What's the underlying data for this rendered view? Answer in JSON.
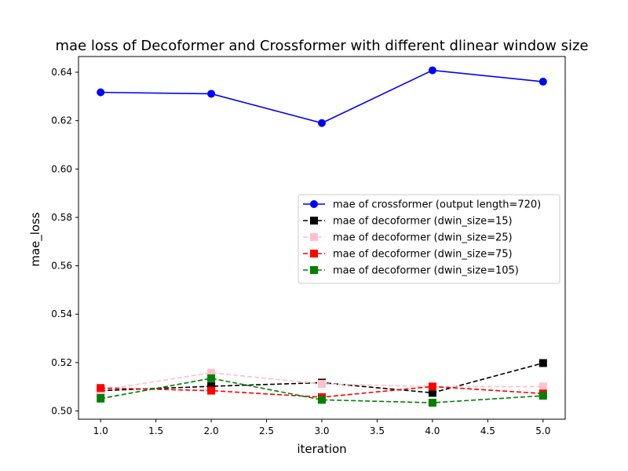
{
  "chart_data": {
    "type": "line",
    "title": "mae loss of Decoformer and Crossformer with different dlinear window size",
    "xlabel": "iteration",
    "ylabel": "mae_loss",
    "xlim": [
      0.8,
      5.2
    ],
    "ylim": [
      0.4966,
      0.6465
    ],
    "xticks": [
      1.0,
      1.5,
      2.0,
      2.5,
      3.0,
      3.5,
      4.0,
      4.5,
      5.0
    ],
    "xtick_labels": [
      "1.0",
      "1.5",
      "2.0",
      "2.5",
      "3.0",
      "3.5",
      "4.0",
      "4.5",
      "5.0"
    ],
    "yticks": [
      0.5,
      0.52,
      0.54,
      0.56,
      0.58,
      0.6,
      0.62,
      0.64
    ],
    "ytick_labels": [
      "0.50",
      "0.52",
      "0.54",
      "0.56",
      "0.58",
      "0.60",
      "0.62",
      "0.64"
    ],
    "grid": false,
    "legend_position": "center-right",
    "x": [
      1,
      2,
      3,
      4,
      5
    ],
    "series": [
      {
        "name": "mae of crossformer (output length=720)",
        "color": "#0000ff",
        "dash": "solid",
        "marker": "circle",
        "values": [
          0.6317,
          0.6311,
          0.619,
          0.6408,
          0.6361
        ]
      },
      {
        "name": "mae of decoformer (dwin_size=15)",
        "color": "#000000",
        "dash": "dashed",
        "marker": "square",
        "values": [
          0.5084,
          0.5102,
          0.5117,
          0.5075,
          0.5198
        ]
      },
      {
        "name": "mae of decoformer (dwin_size=25)",
        "color": "#ffc0cb",
        "dash": "dashed",
        "marker": "square",
        "values": [
          0.5086,
          0.5158,
          0.5112,
          0.5101,
          0.5101
        ]
      },
      {
        "name": "mae of decoformer (dwin_size=75)",
        "color": "#ff0000",
        "dash": "dashed",
        "marker": "square",
        "values": [
          0.5095,
          0.5084,
          0.5057,
          0.5101,
          0.5072
        ]
      },
      {
        "name": "mae of decoformer (dwin_size=105)",
        "color": "#008000",
        "dash": "dashed",
        "marker": "square",
        "values": [
          0.5051,
          0.5135,
          0.5046,
          0.5034,
          0.5063
        ]
      }
    ]
  }
}
